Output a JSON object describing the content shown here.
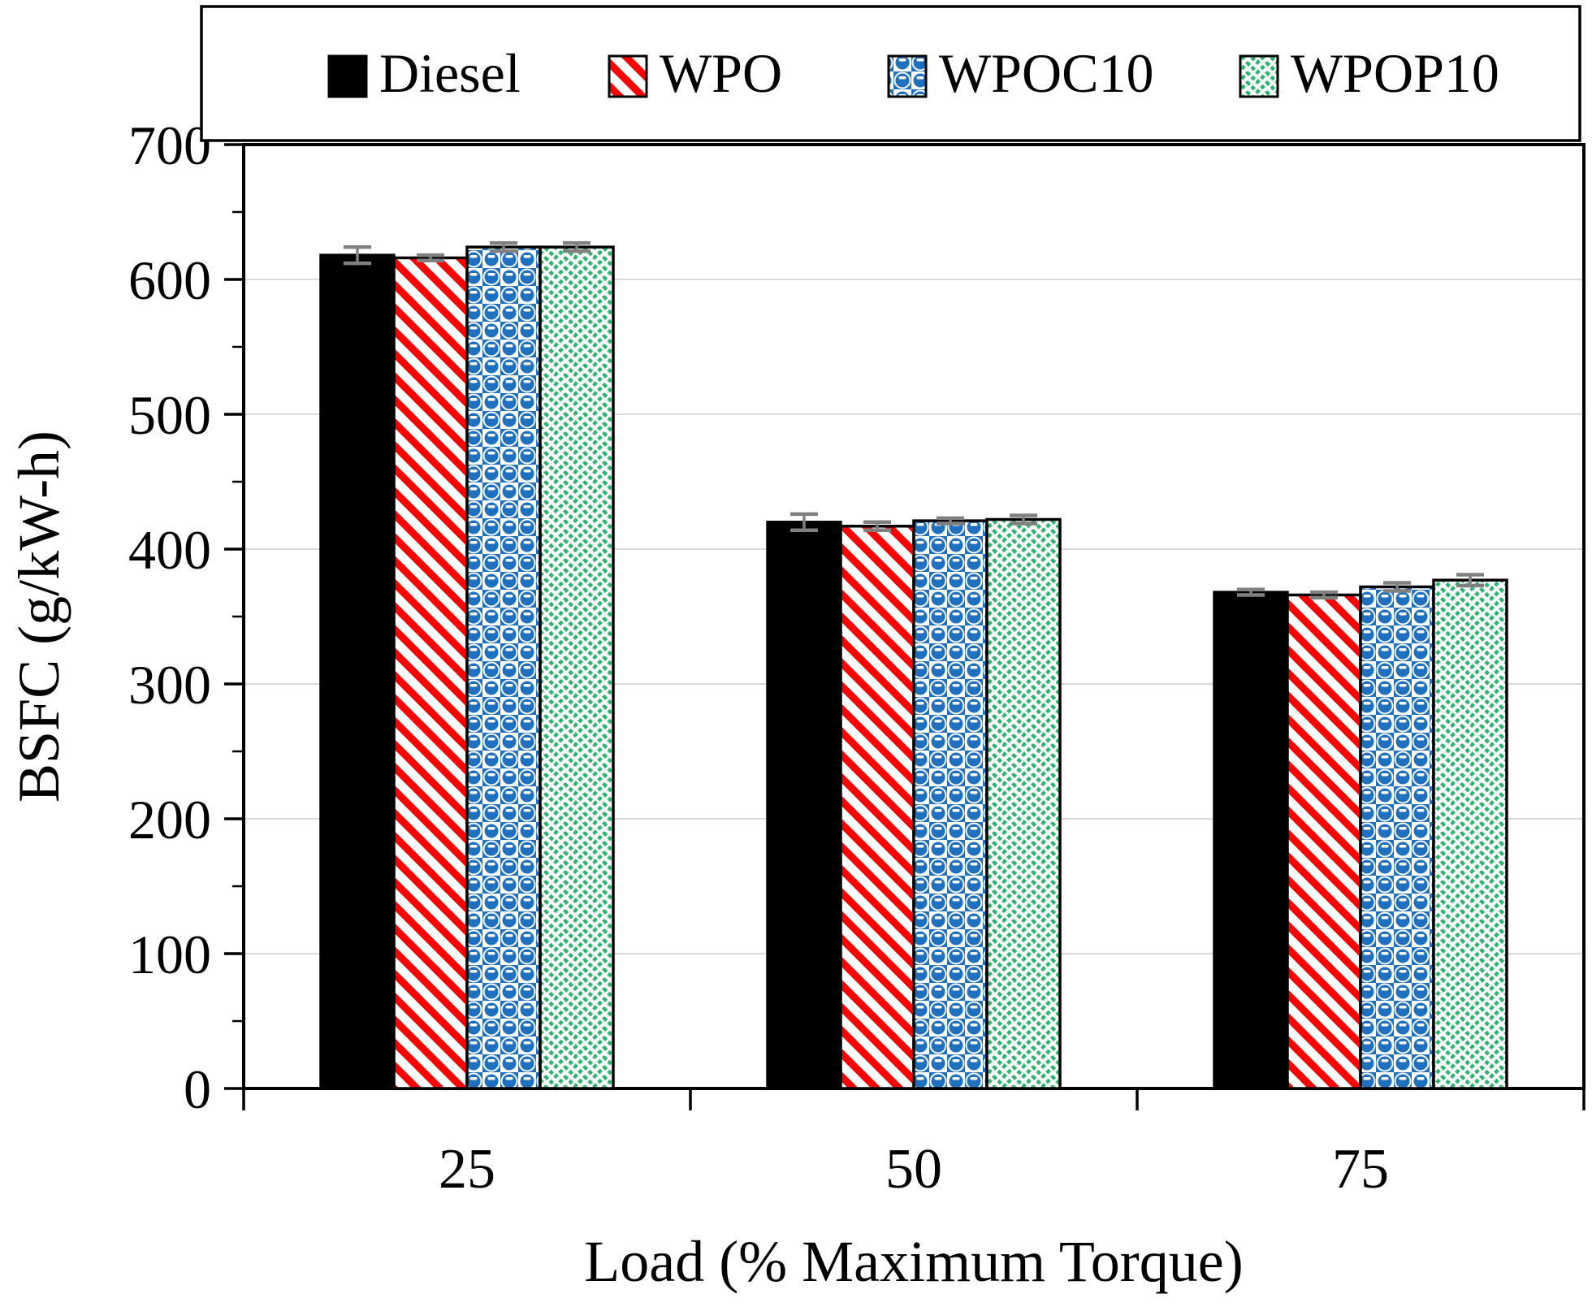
{
  "figure": {
    "background": "#FFFFFF",
    "frame_color": "#000000",
    "gridline_color": "#D9D9D9",
    "error_bar_color": "#808080"
  },
  "chart_data": {
    "type": "bar",
    "title": "",
    "xlabel": "Load (% Maximum Torque)",
    "ylabel": "BSFC (g/kW-h)",
    "categories": [
      "25",
      "50",
      "75"
    ],
    "series": [
      {
        "name": "Diesel",
        "fill": "solid-black",
        "color": "#000000",
        "values": [
          618,
          420,
          368
        ],
        "error_bars": [
          6,
          6,
          2
        ]
      },
      {
        "name": "WPO",
        "fill": "red-diagonal-stripe",
        "color": "#FF0000",
        "values": [
          616,
          417,
          366
        ],
        "error_bars": [
          2,
          3,
          2
        ]
      },
      {
        "name": "WPOC10",
        "fill": "blue-sphere-pattern",
        "color": "#2070C0",
        "values": [
          624,
          421,
          372
        ],
        "error_bars": [
          3,
          2,
          3
        ]
      },
      {
        "name": "WPOP10",
        "fill": "green-zigzag-pattern",
        "color": "#2DB56F",
        "values": [
          624,
          422,
          377
        ],
        "error_bars": [
          3,
          3,
          4
        ]
      }
    ],
    "ylim": [
      0,
      700
    ],
    "ytick_step": 100,
    "yminor_step": 50,
    "ytick_labels": [
      "0",
      "100",
      "200",
      "300",
      "400",
      "500",
      "600",
      "700"
    ],
    "grid": true,
    "legend_position": "top"
  }
}
